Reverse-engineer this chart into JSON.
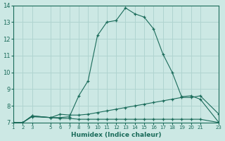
{
  "xlabel": "Humidex (Indice chaleur)",
  "background_color": "#cce8e4",
  "grid_color": "#b0d4d0",
  "line_color": "#1a6b5a",
  "xlim": [
    1,
    23
  ],
  "ylim": [
    7,
    14
  ],
  "xticks": [
    1,
    2,
    3,
    5,
    6,
    7,
    8,
    9,
    10,
    11,
    12,
    13,
    14,
    15,
    16,
    17,
    18,
    19,
    20,
    21,
    23
  ],
  "yticks": [
    7,
    8,
    9,
    10,
    11,
    12,
    13,
    14
  ],
  "series_main": [
    [
      1,
      7.0
    ],
    [
      2,
      7.0
    ],
    [
      3,
      7.4
    ],
    [
      5,
      7.3
    ],
    [
      6,
      7.3
    ],
    [
      7,
      7.35
    ],
    [
      8,
      8.6
    ],
    [
      9,
      9.5
    ],
    [
      10,
      12.2
    ],
    [
      11,
      13.0
    ],
    [
      12,
      13.1
    ],
    [
      13,
      13.85
    ],
    [
      14,
      13.5
    ],
    [
      15,
      13.3
    ],
    [
      16,
      12.6
    ],
    [
      17,
      11.1
    ],
    [
      18,
      10.0
    ],
    [
      19,
      8.55
    ],
    [
      20,
      8.6
    ],
    [
      21,
      8.4
    ],
    [
      23,
      7.0
    ]
  ],
  "series_mid": [
    [
      1,
      7.0
    ],
    [
      2,
      7.0
    ],
    [
      3,
      7.4
    ],
    [
      5,
      7.3
    ],
    [
      6,
      7.5
    ],
    [
      7,
      7.45
    ],
    [
      8,
      7.45
    ],
    [
      9,
      7.5
    ],
    [
      10,
      7.6
    ],
    [
      11,
      7.7
    ],
    [
      12,
      7.8
    ],
    [
      13,
      7.9
    ],
    [
      14,
      8.0
    ],
    [
      15,
      8.1
    ],
    [
      16,
      8.2
    ],
    [
      17,
      8.3
    ],
    [
      18,
      8.4
    ],
    [
      19,
      8.5
    ],
    [
      20,
      8.5
    ],
    [
      21,
      8.6
    ],
    [
      23,
      7.5
    ]
  ],
  "series_flat": [
    [
      1,
      7.0
    ],
    [
      2,
      7.0
    ],
    [
      3,
      7.35
    ],
    [
      5,
      7.3
    ],
    [
      6,
      7.25
    ],
    [
      7,
      7.25
    ],
    [
      8,
      7.2
    ],
    [
      9,
      7.2
    ],
    [
      10,
      7.2
    ],
    [
      11,
      7.2
    ],
    [
      12,
      7.2
    ],
    [
      13,
      7.2
    ],
    [
      14,
      7.2
    ],
    [
      15,
      7.2
    ],
    [
      16,
      7.2
    ],
    [
      17,
      7.2
    ],
    [
      18,
      7.2
    ],
    [
      19,
      7.2
    ],
    [
      20,
      7.2
    ],
    [
      21,
      7.2
    ],
    [
      23,
      7.0
    ]
  ]
}
